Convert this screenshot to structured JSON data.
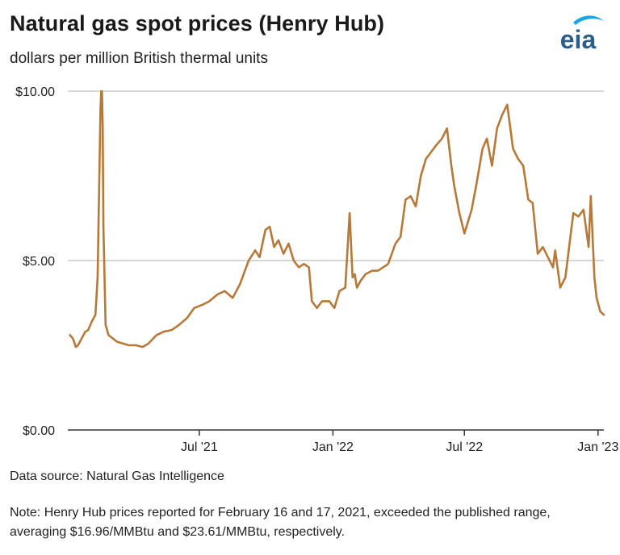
{
  "header": {
    "title": "Natural gas spot prices (Henry Hub)",
    "subtitle": "dollars per million British thermal units",
    "logo_text": "eia"
  },
  "footer": {
    "source": "Data source: Natural Gas Intelligence",
    "note": "Note: Henry Hub prices reported for February 16 and 17, 2021, exceeded the published range, averaging $16.96/MMBtu and $23.61/MMBtu, respectively."
  },
  "colors": {
    "line": "#b5793a",
    "grid": "#bdbdbd",
    "axis": "#333333",
    "logo_text": "#2b5f8a",
    "logo_swoosh": "#1aa7e0"
  },
  "chart_data": {
    "type": "line",
    "title": "Natural gas spot prices (Henry Hub)",
    "ylabel": "dollars per million British thermal units",
    "xlim": [
      "2021-01-01",
      "2023-01-09"
    ],
    "ylim": [
      0,
      10
    ],
    "yticks": [
      0,
      5,
      10
    ],
    "ytick_labels": [
      "$0.00",
      "$5.00",
      "$10.00"
    ],
    "xticks": [
      "2021-07-01",
      "2022-01-01",
      "2022-07-01",
      "2023-01-01"
    ],
    "xtick_labels": [
      "Jul '21",
      "Jan '22",
      "Jul '22",
      "Jan '23"
    ],
    "grid": "horizontal",
    "series": [
      {
        "name": "",
        "x": [
          "2021-01-04",
          "2021-01-08",
          "2021-01-12",
          "2021-01-15",
          "2021-01-20",
          "2021-01-25",
          "2021-01-29",
          "2021-02-03",
          "2021-02-08",
          "2021-02-11",
          "2021-02-15",
          "2021-02-16",
          "2021-02-17",
          "2021-02-18",
          "2021-02-19",
          "2021-02-22",
          "2021-02-26",
          "2021-03-04",
          "2021-03-10",
          "2021-03-18",
          "2021-03-26",
          "2021-04-05",
          "2021-04-14",
          "2021-04-22",
          "2021-05-03",
          "2021-05-13",
          "2021-05-24",
          "2021-06-03",
          "2021-06-14",
          "2021-06-24",
          "2021-07-06",
          "2021-07-15",
          "2021-07-26",
          "2021-08-05",
          "2021-08-16",
          "2021-08-26",
          "2021-09-07",
          "2021-09-16",
          "2021-09-22",
          "2021-09-30",
          "2021-10-06",
          "2021-10-12",
          "2021-10-18",
          "2021-10-25",
          "2021-11-01",
          "2021-11-08",
          "2021-11-15",
          "2021-11-22",
          "2021-11-29",
          "2021-12-03",
          "2021-12-10",
          "2021-12-17",
          "2021-12-27",
          "2022-01-03",
          "2022-01-10",
          "2022-01-18",
          "2022-01-24",
          "2022-01-28",
          "2022-01-31",
          "2022-02-03",
          "2022-02-08",
          "2022-02-15",
          "2022-02-24",
          "2022-03-04",
          "2022-03-11",
          "2022-03-18",
          "2022-03-28",
          "2022-04-04",
          "2022-04-11",
          "2022-04-18",
          "2022-04-25",
          "2022-05-02",
          "2022-05-09",
          "2022-05-16",
          "2022-05-23",
          "2022-05-31",
          "2022-06-07",
          "2022-06-13",
          "2022-06-17",
          "2022-06-24",
          "2022-07-01",
          "2022-07-11",
          "2022-07-18",
          "2022-07-26",
          "2022-08-01",
          "2022-08-08",
          "2022-08-15",
          "2022-08-22",
          "2022-08-29",
          "2022-09-06",
          "2022-09-13",
          "2022-09-20",
          "2022-09-27",
          "2022-10-03",
          "2022-10-10",
          "2022-10-17",
          "2022-10-24",
          "2022-10-31",
          "2022-11-03",
          "2022-11-10",
          "2022-11-17",
          "2022-11-28",
          "2022-12-05",
          "2022-12-12",
          "2022-12-19",
          "2022-12-22",
          "2022-12-27",
          "2022-12-30",
          "2023-01-04",
          "2023-01-09"
        ],
        "y": [
          2.8,
          2.7,
          2.45,
          2.5,
          2.7,
          2.9,
          2.95,
          3.2,
          3.4,
          4.5,
          9.5,
          10.0,
          10.0,
          9.0,
          6.0,
          3.1,
          2.8,
          2.7,
          2.6,
          2.55,
          2.5,
          2.5,
          2.45,
          2.55,
          2.8,
          2.9,
          2.95,
          3.1,
          3.3,
          3.6,
          3.7,
          3.8,
          4.0,
          4.1,
          3.9,
          4.3,
          5.0,
          5.3,
          5.1,
          5.9,
          6.0,
          5.4,
          5.6,
          5.2,
          5.5,
          5.0,
          4.8,
          4.9,
          4.8,
          3.8,
          3.6,
          3.8,
          3.8,
          3.6,
          4.1,
          4.2,
          6.4,
          4.5,
          4.6,
          4.2,
          4.4,
          4.6,
          4.7,
          4.7,
          4.8,
          4.9,
          5.5,
          5.7,
          6.8,
          6.9,
          6.6,
          7.5,
          8.0,
          8.2,
          8.4,
          8.6,
          8.9,
          7.8,
          7.2,
          6.4,
          5.8,
          6.5,
          7.3,
          8.3,
          8.6,
          7.8,
          8.9,
          9.3,
          9.6,
          8.3,
          8.0,
          7.8,
          6.8,
          6.7,
          5.2,
          5.4,
          5.1,
          4.8,
          5.3,
          4.2,
          4.5,
          6.4,
          6.3,
          6.5,
          5.4,
          6.9,
          4.5,
          3.9,
          3.5,
          3.4
        ]
      }
    ]
  }
}
